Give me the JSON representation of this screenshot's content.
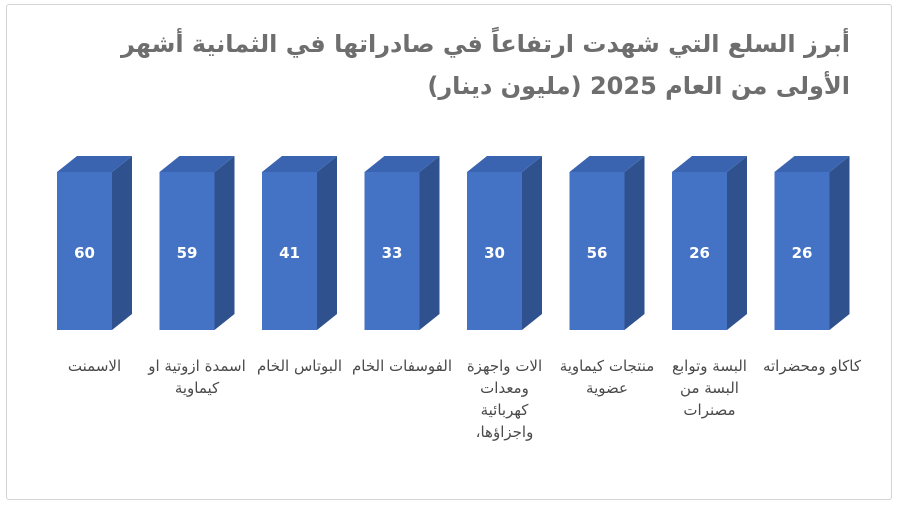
{
  "title_lines": [
    "أبرز السلع التي شهدت ارتفاعاً في صادراتها في الثمانية أشهر",
    "الأولى من العام 2025 (مليون دينار)"
  ],
  "colors": {
    "bar_front": "#4472c4",
    "bar_side": "#2f528f",
    "bar_top": "#3a64b0",
    "label_text": "#ffffff",
    "title_text": "#6e6e6e"
  },
  "chart_data": {
    "type": "bar",
    "title": "أبرز السلع التي شهدت ارتفاعاً في صادراتها في الثمانية أشهر الأولى من العام 2025 (مليون دينار)",
    "categories": [
      "الاسمنت",
      "اسمدة ازوتية او كيماوية",
      "البوتاس الخام",
      "الفوسفات الخام",
      "الات واجهزة ومعدات كهربائية واجزاؤها،",
      "منتجات كيماوية عضوية",
      "البسة وتوابع البسة من مصنرات",
      "كاكاو ومحضراته"
    ],
    "values": [
      60,
      59,
      41,
      33,
      30,
      56,
      26,
      26
    ],
    "data_labels": true,
    "bar_style": "3d-column",
    "xlabel": "",
    "ylabel": ""
  }
}
